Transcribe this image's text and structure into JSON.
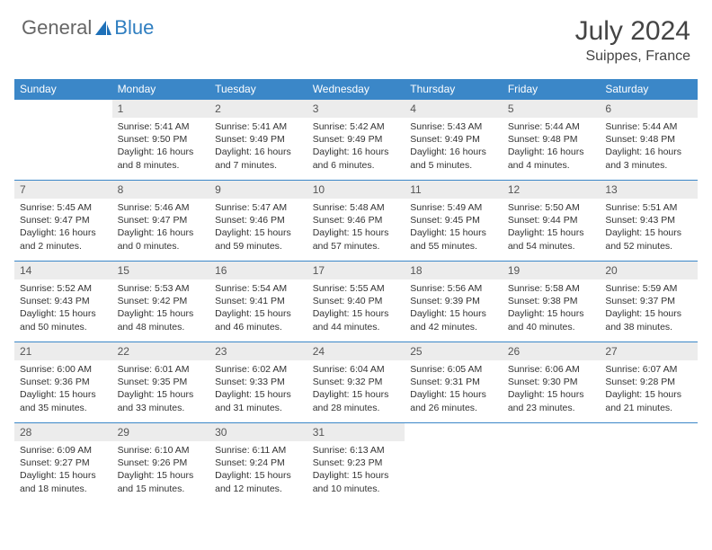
{
  "brand": {
    "part1": "General",
    "part2": "Blue"
  },
  "title": "July 2024",
  "location": "Suippes, France",
  "theme": {
    "header_bg": "#3b87c8",
    "header_fg": "#ffffff",
    "daynum_bg": "#ececec",
    "row_border": "#3b87c8",
    "text_color": "#333333"
  },
  "weekdays": [
    "Sunday",
    "Monday",
    "Tuesday",
    "Wednesday",
    "Thursday",
    "Friday",
    "Saturday"
  ],
  "weeks": [
    [
      null,
      {
        "n": 1,
        "sunrise": "5:41 AM",
        "sunset": "9:50 PM",
        "daylight": "16 hours and 8 minutes."
      },
      {
        "n": 2,
        "sunrise": "5:41 AM",
        "sunset": "9:49 PM",
        "daylight": "16 hours and 7 minutes."
      },
      {
        "n": 3,
        "sunrise": "5:42 AM",
        "sunset": "9:49 PM",
        "daylight": "16 hours and 6 minutes."
      },
      {
        "n": 4,
        "sunrise": "5:43 AM",
        "sunset": "9:49 PM",
        "daylight": "16 hours and 5 minutes."
      },
      {
        "n": 5,
        "sunrise": "5:44 AM",
        "sunset": "9:48 PM",
        "daylight": "16 hours and 4 minutes."
      },
      {
        "n": 6,
        "sunrise": "5:44 AM",
        "sunset": "9:48 PM",
        "daylight": "16 hours and 3 minutes."
      }
    ],
    [
      {
        "n": 7,
        "sunrise": "5:45 AM",
        "sunset": "9:47 PM",
        "daylight": "16 hours and 2 minutes."
      },
      {
        "n": 8,
        "sunrise": "5:46 AM",
        "sunset": "9:47 PM",
        "daylight": "16 hours and 0 minutes."
      },
      {
        "n": 9,
        "sunrise": "5:47 AM",
        "sunset": "9:46 PM",
        "daylight": "15 hours and 59 minutes."
      },
      {
        "n": 10,
        "sunrise": "5:48 AM",
        "sunset": "9:46 PM",
        "daylight": "15 hours and 57 minutes."
      },
      {
        "n": 11,
        "sunrise": "5:49 AM",
        "sunset": "9:45 PM",
        "daylight": "15 hours and 55 minutes."
      },
      {
        "n": 12,
        "sunrise": "5:50 AM",
        "sunset": "9:44 PM",
        "daylight": "15 hours and 54 minutes."
      },
      {
        "n": 13,
        "sunrise": "5:51 AM",
        "sunset": "9:43 PM",
        "daylight": "15 hours and 52 minutes."
      }
    ],
    [
      {
        "n": 14,
        "sunrise": "5:52 AM",
        "sunset": "9:43 PM",
        "daylight": "15 hours and 50 minutes."
      },
      {
        "n": 15,
        "sunrise": "5:53 AM",
        "sunset": "9:42 PM",
        "daylight": "15 hours and 48 minutes."
      },
      {
        "n": 16,
        "sunrise": "5:54 AM",
        "sunset": "9:41 PM",
        "daylight": "15 hours and 46 minutes."
      },
      {
        "n": 17,
        "sunrise": "5:55 AM",
        "sunset": "9:40 PM",
        "daylight": "15 hours and 44 minutes."
      },
      {
        "n": 18,
        "sunrise": "5:56 AM",
        "sunset": "9:39 PM",
        "daylight": "15 hours and 42 minutes."
      },
      {
        "n": 19,
        "sunrise": "5:58 AM",
        "sunset": "9:38 PM",
        "daylight": "15 hours and 40 minutes."
      },
      {
        "n": 20,
        "sunrise": "5:59 AM",
        "sunset": "9:37 PM",
        "daylight": "15 hours and 38 minutes."
      }
    ],
    [
      {
        "n": 21,
        "sunrise": "6:00 AM",
        "sunset": "9:36 PM",
        "daylight": "15 hours and 35 minutes."
      },
      {
        "n": 22,
        "sunrise": "6:01 AM",
        "sunset": "9:35 PM",
        "daylight": "15 hours and 33 minutes."
      },
      {
        "n": 23,
        "sunrise": "6:02 AM",
        "sunset": "9:33 PM",
        "daylight": "15 hours and 31 minutes."
      },
      {
        "n": 24,
        "sunrise": "6:04 AM",
        "sunset": "9:32 PM",
        "daylight": "15 hours and 28 minutes."
      },
      {
        "n": 25,
        "sunrise": "6:05 AM",
        "sunset": "9:31 PM",
        "daylight": "15 hours and 26 minutes."
      },
      {
        "n": 26,
        "sunrise": "6:06 AM",
        "sunset": "9:30 PM",
        "daylight": "15 hours and 23 minutes."
      },
      {
        "n": 27,
        "sunrise": "6:07 AM",
        "sunset": "9:28 PM",
        "daylight": "15 hours and 21 minutes."
      }
    ],
    [
      {
        "n": 28,
        "sunrise": "6:09 AM",
        "sunset": "9:27 PM",
        "daylight": "15 hours and 18 minutes."
      },
      {
        "n": 29,
        "sunrise": "6:10 AM",
        "sunset": "9:26 PM",
        "daylight": "15 hours and 15 minutes."
      },
      {
        "n": 30,
        "sunrise": "6:11 AM",
        "sunset": "9:24 PM",
        "daylight": "15 hours and 12 minutes."
      },
      {
        "n": 31,
        "sunrise": "6:13 AM",
        "sunset": "9:23 PM",
        "daylight": "15 hours and 10 minutes."
      },
      null,
      null,
      null
    ]
  ],
  "labels": {
    "sunrise": "Sunrise:",
    "sunset": "Sunset:",
    "daylight": "Daylight:"
  }
}
